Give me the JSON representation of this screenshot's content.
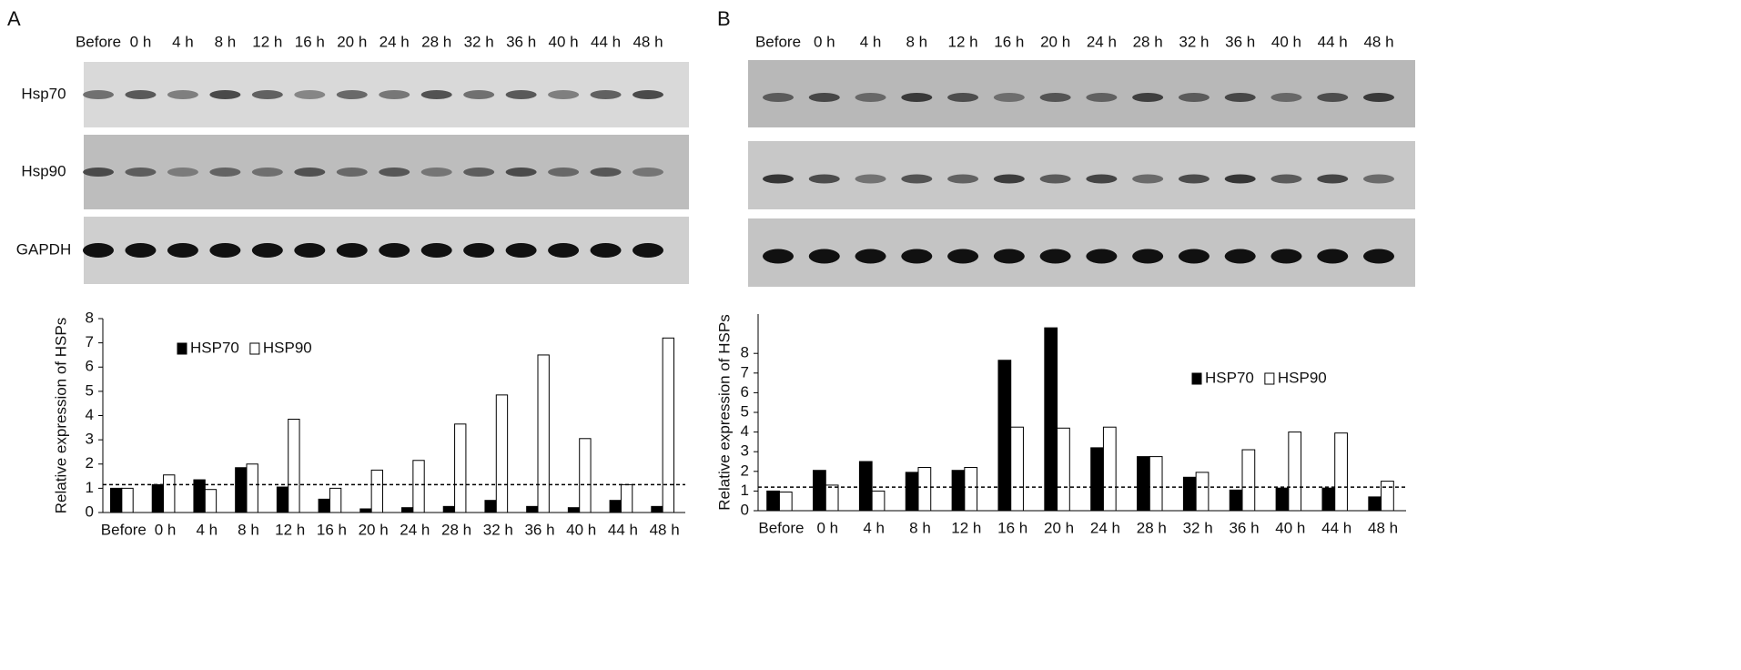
{
  "panel_labels": [
    "A",
    "B"
  ],
  "blots": [
    {
      "lanes": [
        "Before",
        "0 h",
        "4 h",
        "8 h",
        "12 h",
        "16 h",
        "20 h",
        "24 h",
        "28 h",
        "32 h",
        "36 h",
        "40 h",
        "44 h",
        "48 h"
      ],
      "rows": [
        "Hsp70",
        "Hsp90",
        "GAPDH"
      ]
    },
    {
      "lanes": [
        "Before",
        "0 h",
        "4 h",
        "8 h",
        "12 h",
        "16 h",
        "20 h",
        "24 h",
        "28 h",
        "32 h",
        "36 h",
        "40 h",
        "44 h",
        "48 h"
      ]
    }
  ],
  "chart_data": [
    {
      "type": "bar",
      "y_label": "Relative expression of HSPs",
      "categories": [
        "Before",
        "0 h",
        "4 h",
        "8 h",
        "12 h",
        "16 h",
        "20 h",
        "24 h",
        "28 h",
        "32 h",
        "36 h",
        "40 h",
        "44 h",
        "48 h"
      ],
      "series": [
        {
          "name": "HSP70",
          "color": "#000000",
          "values": [
            1.0,
            1.15,
            1.35,
            1.85,
            1.05,
            0.55,
            0.15,
            0.2,
            0.25,
            0.5,
            0.25,
            0.2,
            0.5,
            0.25
          ]
        },
        {
          "name": "HSP90",
          "color": "#ffffff",
          "values": [
            1.0,
            1.55,
            0.95,
            2.0,
            3.85,
            1.0,
            1.75,
            2.15,
            3.65,
            4.85,
            6.5,
            3.05,
            1.15,
            7.2
          ]
        }
      ],
      "ylim": [
        0,
        8
      ],
      "yticks": [
        0,
        1,
        2,
        3,
        4,
        5,
        6,
        7,
        8
      ],
      "reference_line": 1.15,
      "legend": "upper left"
    },
    {
      "type": "bar",
      "y_label": "Relative expression of HSPs",
      "categories": [
        "Before",
        "0 h",
        "4 h",
        "8 h",
        "12 h",
        "16 h",
        "20 h",
        "24 h",
        "28 h",
        "32 h",
        "36 h",
        "40 h",
        "44 h",
        "48 h"
      ],
      "series": [
        {
          "name": "HSP70",
          "color": "#000000",
          "values": [
            1.0,
            2.05,
            2.5,
            1.95,
            2.05,
            7.65,
            9.3,
            3.2,
            2.75,
            1.7,
            1.05,
            1.15,
            1.15,
            0.7
          ]
        },
        {
          "name": "HSP90",
          "color": "#ffffff",
          "values": [
            0.95,
            1.3,
            1.0,
            2.2,
            2.2,
            4.25,
            4.2,
            4.25,
            2.75,
            1.95,
            3.1,
            4.0,
            3.95,
            1.5
          ]
        }
      ],
      "ylim": [
        0,
        10
      ],
      "yticks": [
        0,
        1,
        2,
        3,
        4,
        5,
        6,
        7,
        8
      ],
      "reference_line": 1.2,
      "legend": "center right"
    }
  ]
}
